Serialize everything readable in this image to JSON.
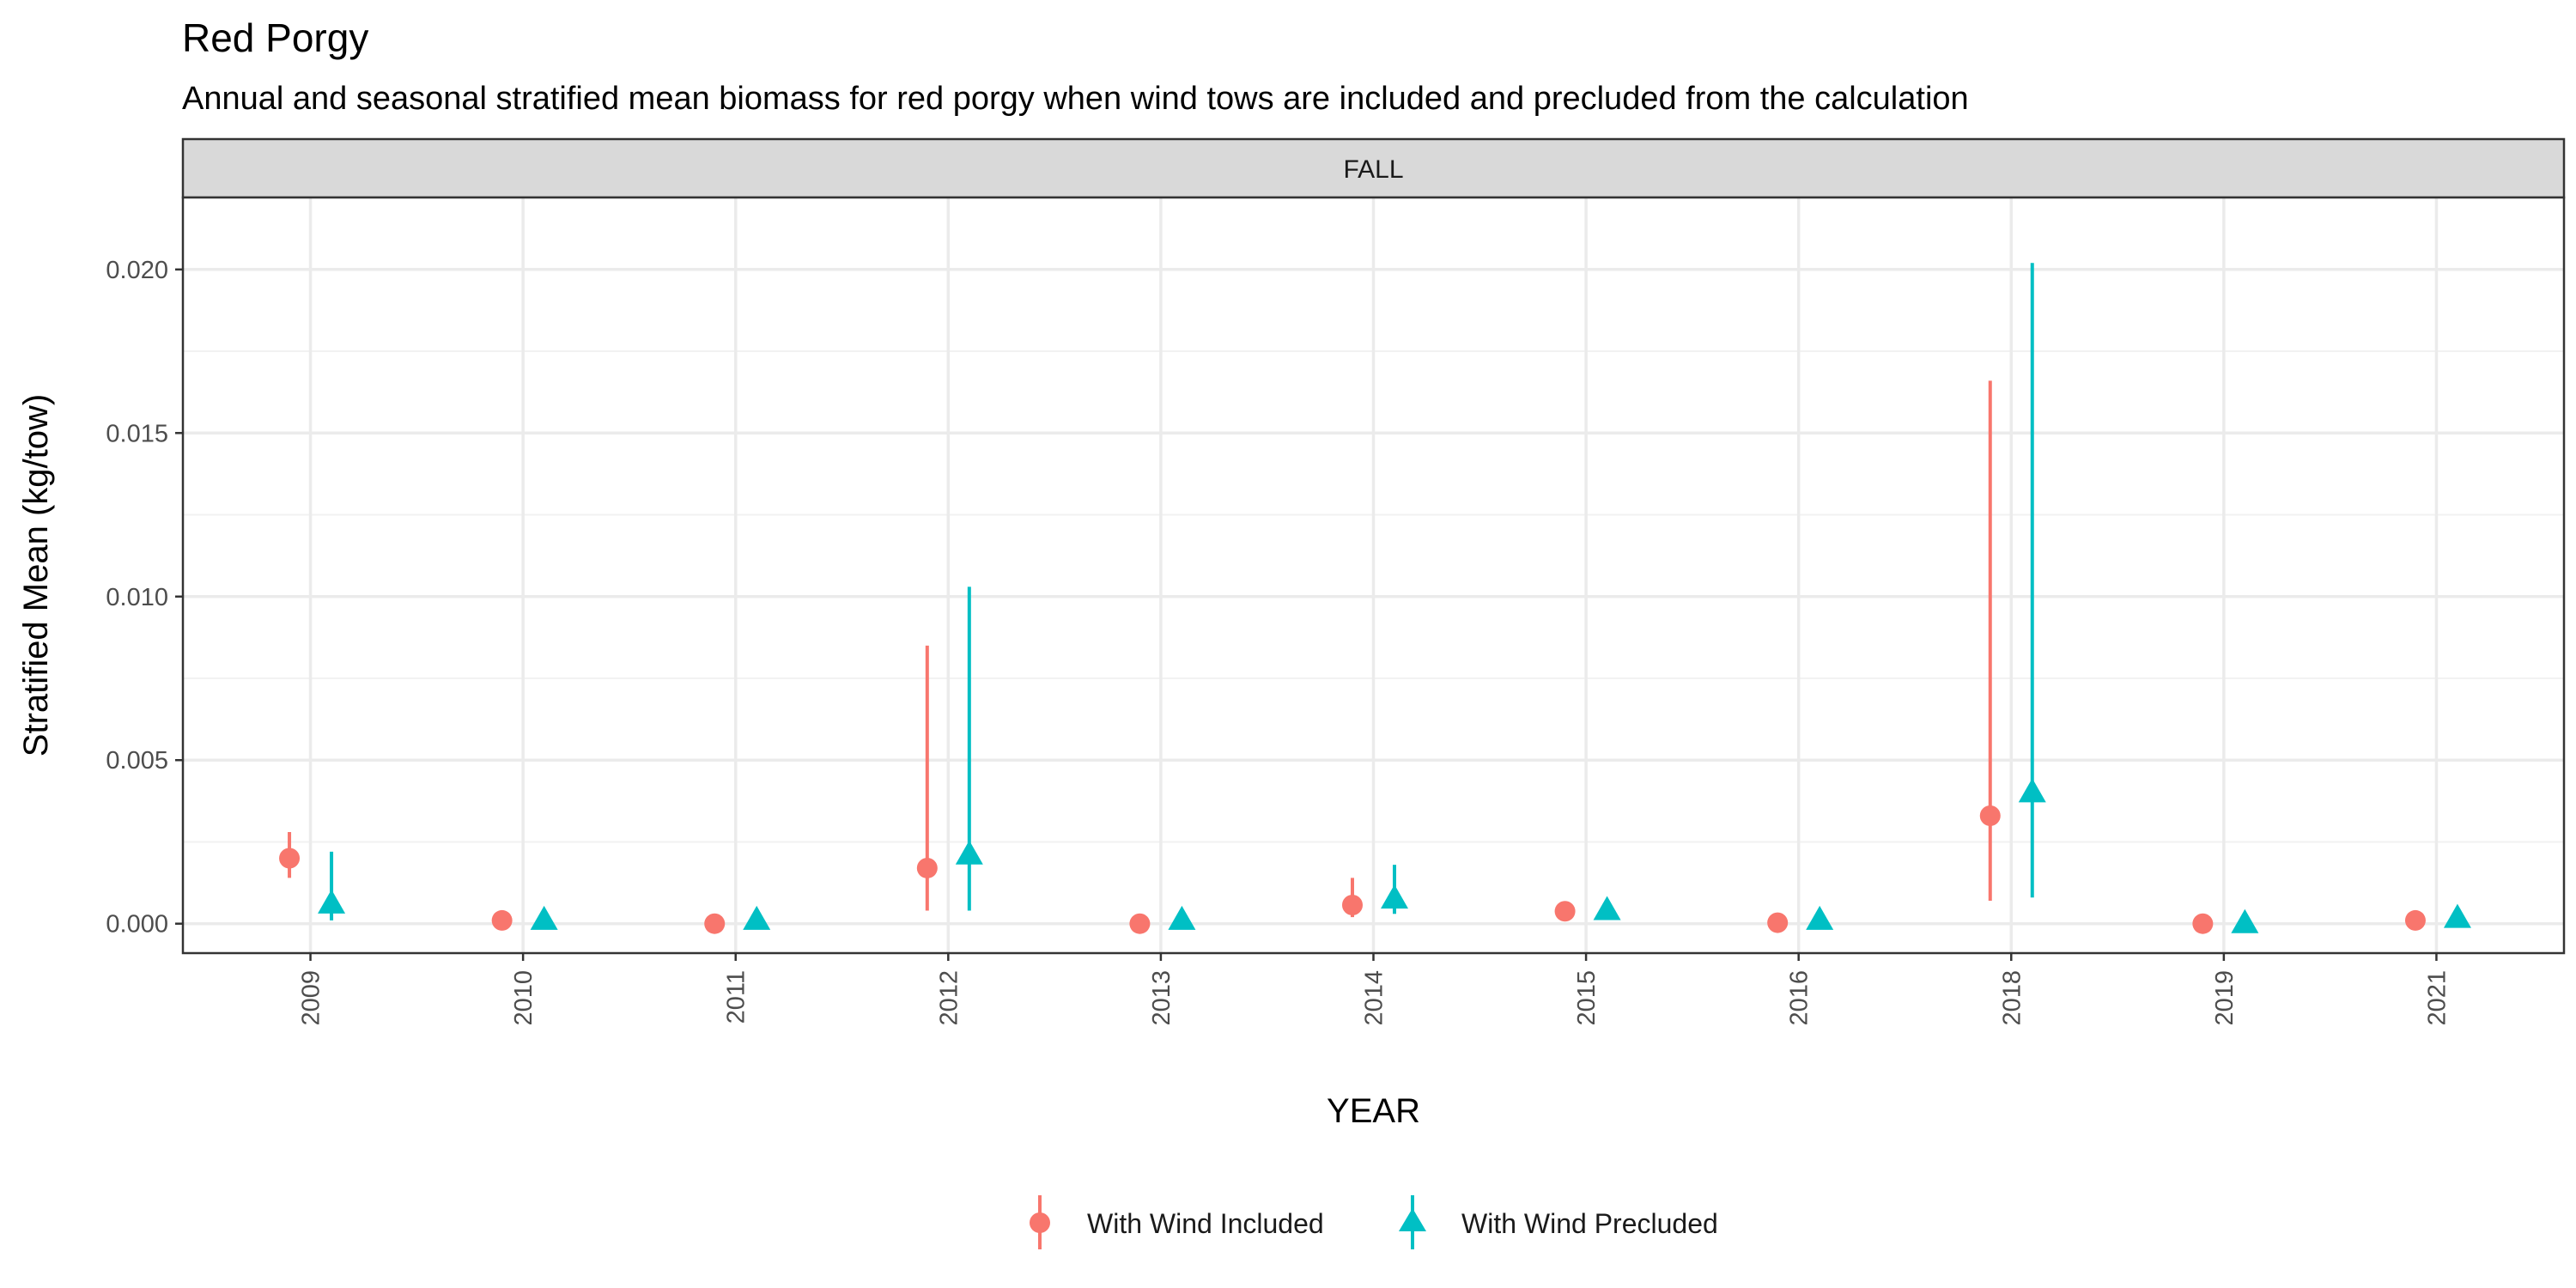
{
  "chart_data": {
    "type": "scatter",
    "title": "Red Porgy",
    "subtitle": "Annual and seasonal stratified mean biomass for red porgy when wind tows are included and precluded from the calculation",
    "facet": "FALL",
    "xlabel": "YEAR",
    "ylabel": "Stratified Mean (kg/tow)",
    "categories": [
      "2009",
      "2010",
      "2011",
      "2012",
      "2013",
      "2014",
      "2015",
      "2016",
      "2018",
      "2019",
      "2021"
    ],
    "ylim": [
      -0.0009,
      0.0222
    ],
    "yticks": [
      "0.000",
      "0.005",
      "0.010",
      "0.015",
      "0.020"
    ],
    "ytick_values": [
      0,
      0.005,
      0.01,
      0.015,
      0.02
    ],
    "grid": true,
    "legend_position": "bottom",
    "series": [
      {
        "name": "With Wind Included",
        "color": "#F8766D",
        "shape": "circle",
        "values": [
          0.002,
          0.0001,
          0.0,
          0.0017,
          0.0,
          0.00057,
          0.00038,
          3e-05,
          0.0033,
          0.0,
          0.0001
        ],
        "lower": [
          0.0014,
          0.0001,
          0.0,
          0.0004,
          0.0,
          0.0002,
          0.00038,
          3e-05,
          0.0007,
          0.0,
          0.0001
        ],
        "upper": [
          0.0028,
          0.0001,
          0.0,
          0.0085,
          0.0,
          0.0014,
          0.00038,
          3e-05,
          0.0166,
          0.0,
          0.0001
        ]
      },
      {
        "name": "With Wind Precluded",
        "color": "#00BFC4",
        "shape": "triangle",
        "values": [
          0.0006,
          0.0001,
          0.0001,
          0.0021,
          0.0001,
          0.00075,
          0.0004,
          0.0001,
          0.004,
          0.0,
          0.00016
        ],
        "lower": [
          0.0001,
          0.0001,
          0.0001,
          0.0004,
          0.0001,
          0.0003,
          0.0004,
          0.0001,
          0.0008,
          0.0,
          0.00016
        ],
        "upper": [
          0.0022,
          0.0001,
          0.0001,
          0.0103,
          0.0001,
          0.0018,
          0.0004,
          0.0001,
          0.0202,
          0.0,
          0.00016
        ]
      }
    ]
  }
}
